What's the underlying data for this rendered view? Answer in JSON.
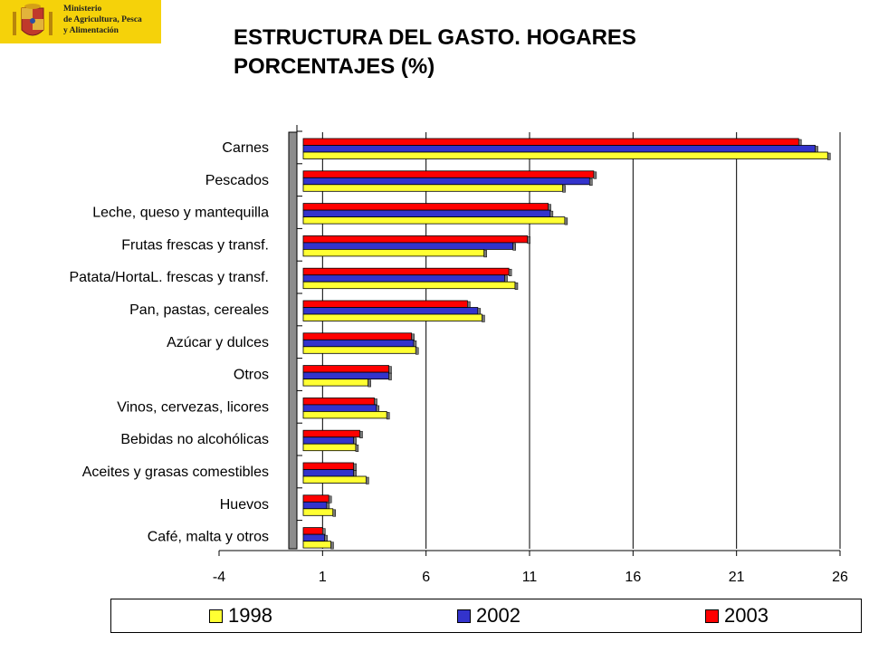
{
  "logo": {
    "line1": "Ministerio",
    "line2": "de Agricultura, Pesca",
    "line3": "y Alimentación",
    "emblem": "coat-of-arms-icon"
  },
  "title": {
    "line1": "ESTRUCTURA DEL GASTO. HOGARES",
    "line2": "PORCENTAJES (%)"
  },
  "legend_placement": "bottom",
  "colors": {
    "1998": "#ffff33",
    "2002": "#3333cc",
    "2003": "#ff0000"
  },
  "chart_data": {
    "type": "bar",
    "orientation": "horizontal",
    "title": "ESTRUCTURA DEL GASTO. HOGARES PORCENTAJES (%)",
    "categories": [
      "Carnes",
      "Pescados",
      "Leche, queso y mantequilla",
      "Frutas frescas y transf.",
      "Patata/HortaL. frescas y transf.",
      "Pan, pastas, cereales",
      "Azúcar y dulces",
      "Otros",
      "Vinos, cervezas, licores",
      "Bebidas no alcohólicas",
      "Aceites y grasas comestibles",
      "Huevos",
      "Café, malta y otros"
    ],
    "series": [
      {
        "name": "1998",
        "values": [
          25.4,
          12.6,
          12.7,
          8.8,
          10.3,
          8.7,
          5.5,
          3.2,
          4.1,
          2.6,
          3.1,
          1.5,
          1.4
        ]
      },
      {
        "name": "2002",
        "values": [
          24.8,
          13.9,
          12.0,
          10.2,
          9.8,
          8.5,
          5.4,
          4.2,
          3.6,
          2.5,
          2.5,
          1.2,
          1.1
        ]
      },
      {
        "name": "2003",
        "values": [
          24.0,
          14.1,
          11.9,
          10.9,
          10.0,
          8.0,
          5.3,
          4.2,
          3.5,
          2.8,
          2.5,
          1.3,
          1.0
        ]
      }
    ],
    "xlim": [
      -4,
      26
    ],
    "xticks": [
      "-4",
      "1",
      "6",
      "11",
      "16",
      "21",
      "26"
    ],
    "grid": "vertical"
  }
}
